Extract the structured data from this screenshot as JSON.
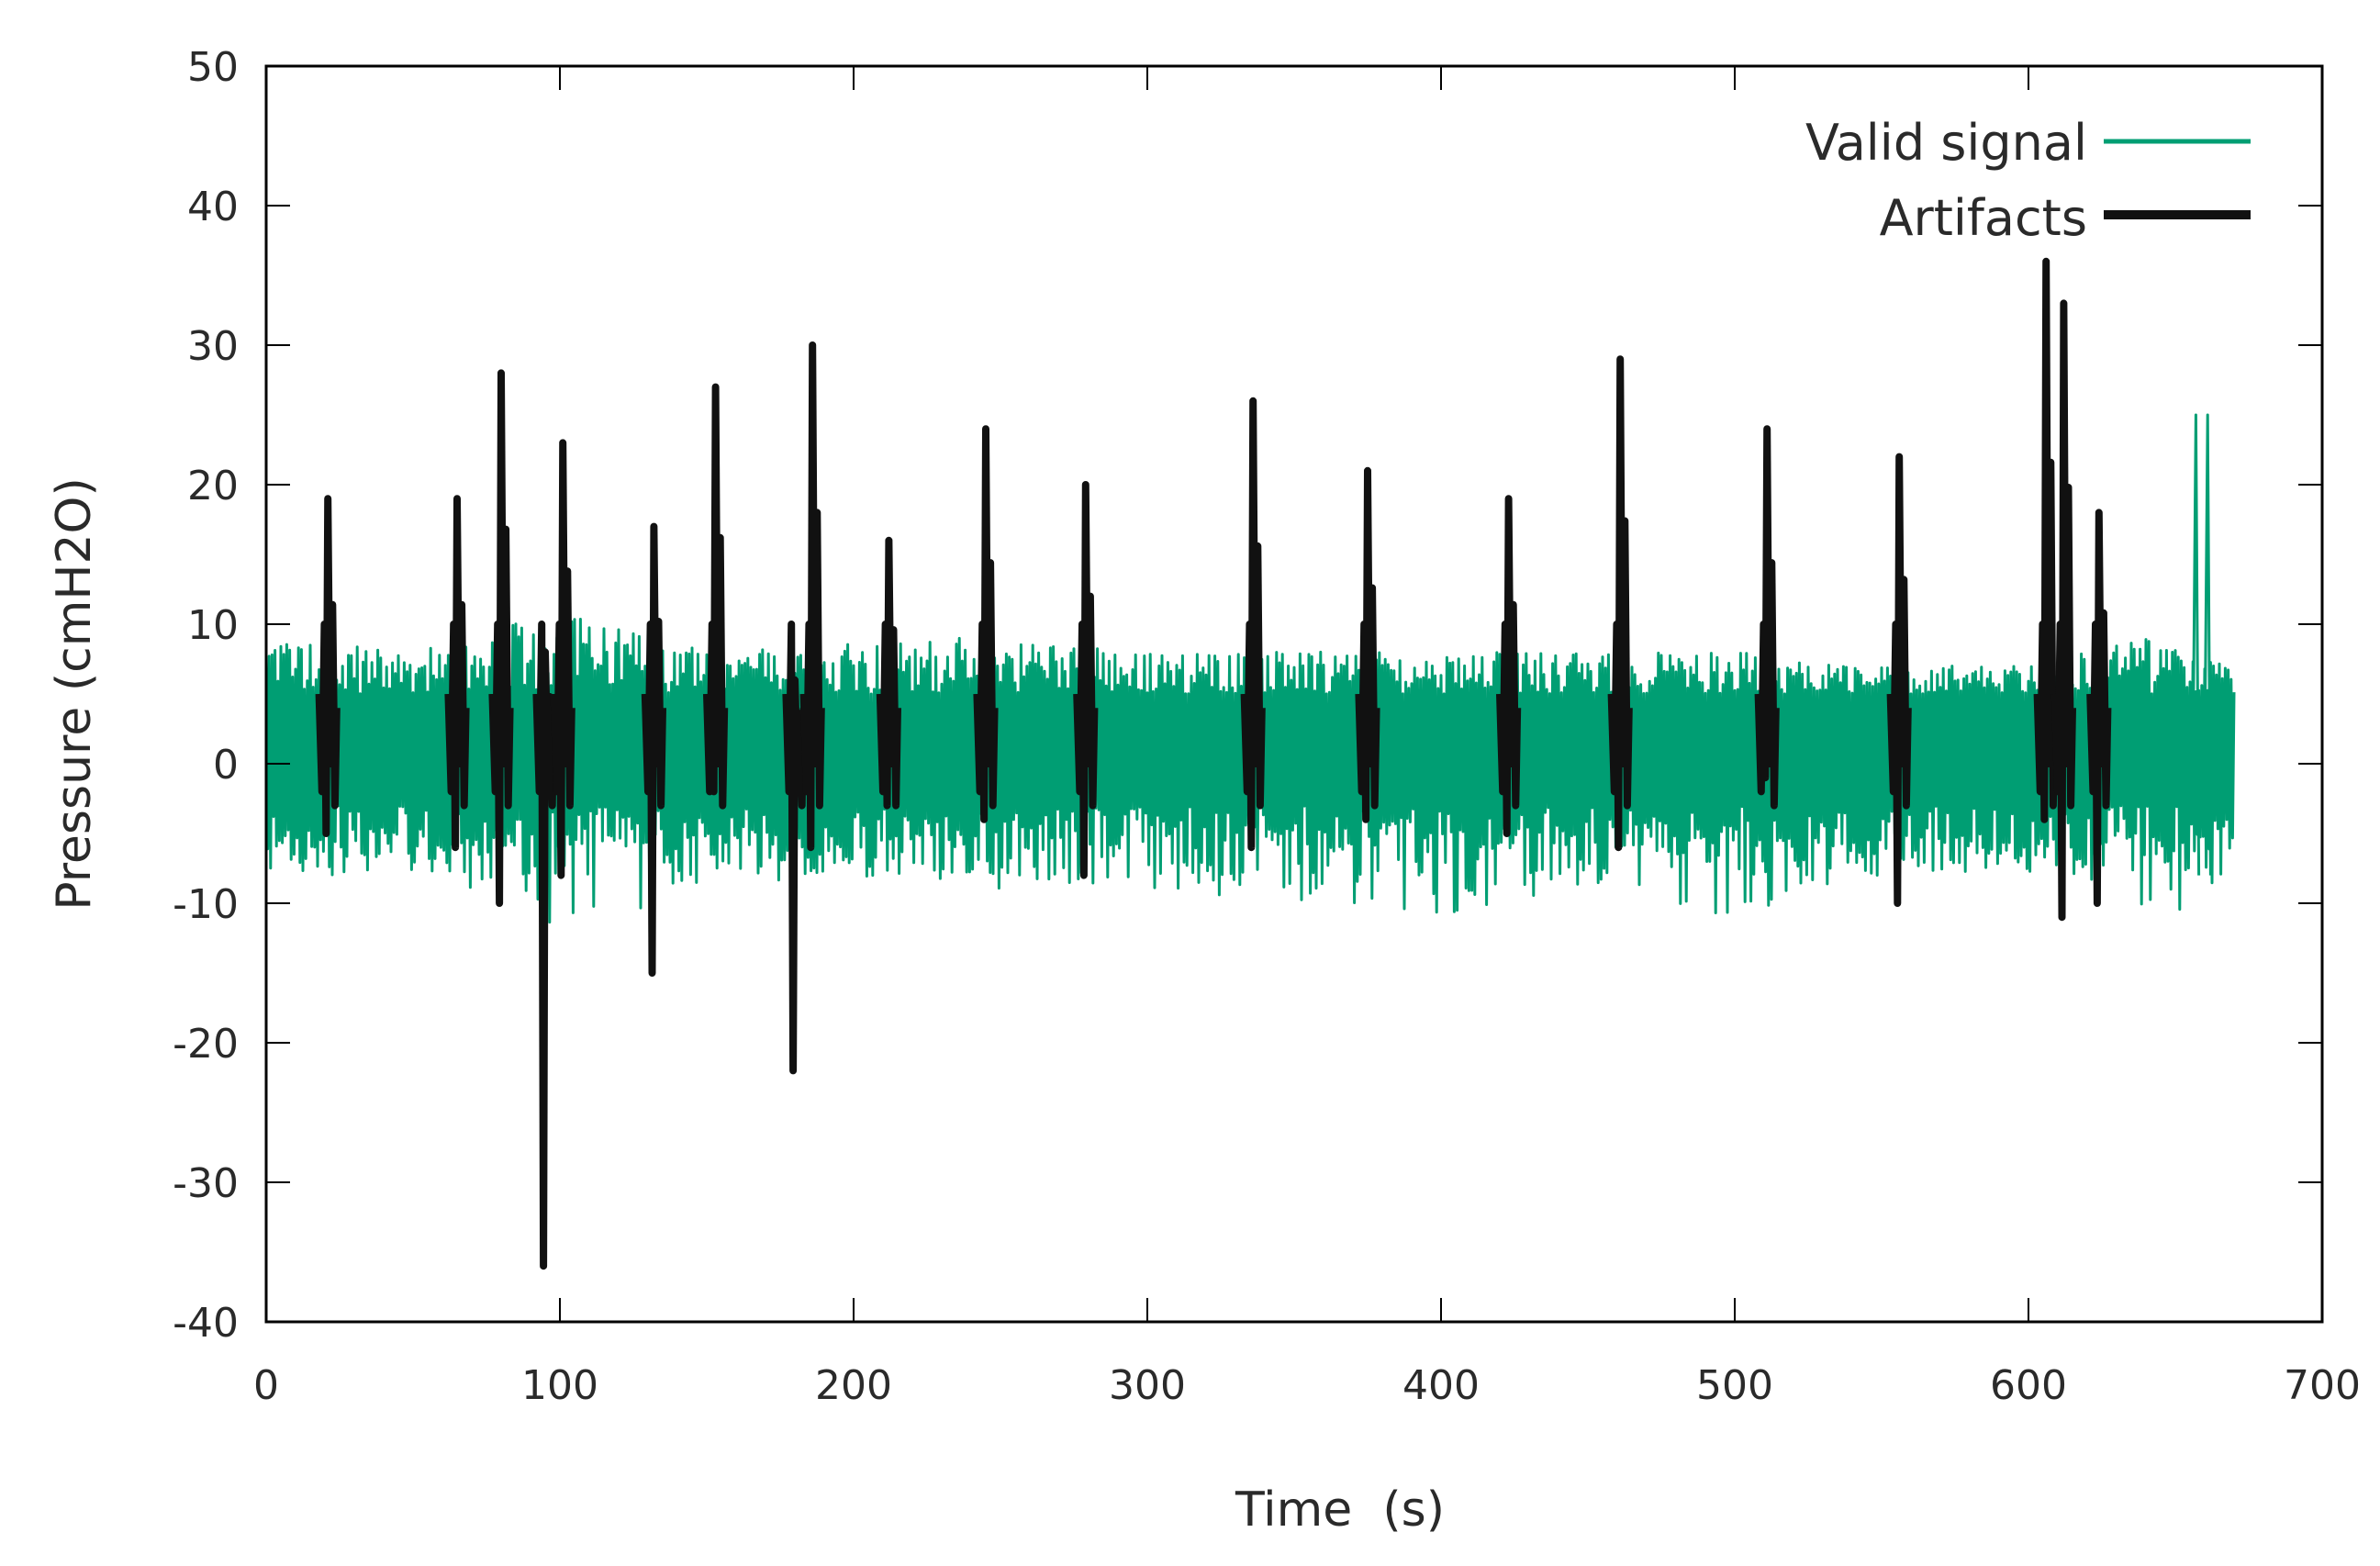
{
  "chart_data": {
    "type": "line",
    "xlabel": "Time  (s)",
    "ylabel": "Pressure (cmH2O)",
    "xlim": [
      0,
      700
    ],
    "ylim": [
      -40,
      50
    ],
    "xticks": [
      0,
      100,
      200,
      300,
      400,
      500,
      600,
      700
    ],
    "yticks": [
      -40,
      -30,
      -20,
      -10,
      0,
      10,
      20,
      30,
      40,
      50
    ],
    "x_tick_labels": [
      "0",
      "100",
      "200",
      "300",
      "400",
      "500",
      "600",
      "700"
    ],
    "y_tick_labels": [
      "-40",
      "-30",
      "-20",
      "-10",
      "0",
      "10",
      "20",
      "30",
      "40",
      "50"
    ],
    "grid": false,
    "legend_position": "top-right",
    "colors": {
      "valid": "#009e73",
      "artifacts": "#111111",
      "axis": "#000000"
    },
    "series": [
      {
        "name": "Valid signal",
        "color": "#009e73",
        "x_range": [
          0,
          670
        ],
        "sample_interval": 0.5,
        "typical_upper": 7,
        "typical_lower": -7,
        "envelope": [
          {
            "x": 0,
            "upper": 8,
            "lower": -7
          },
          {
            "x": 50,
            "upper": 7,
            "lower": -8
          },
          {
            "x": 100,
            "upper": 10,
            "lower": -12
          },
          {
            "x": 150,
            "upper": 7,
            "lower": -9
          },
          {
            "x": 200,
            "upper": 8,
            "lower": -8
          },
          {
            "x": 250,
            "upper": 8,
            "lower": -9
          },
          {
            "x": 300,
            "upper": 7,
            "lower": -9
          },
          {
            "x": 350,
            "upper": 7,
            "lower": -10
          },
          {
            "x": 400,
            "upper": 7,
            "lower": -11
          },
          {
            "x": 450,
            "upper": 7,
            "lower": -9
          },
          {
            "x": 500,
            "upper": 7,
            "lower": -11
          },
          {
            "x": 550,
            "upper": 6,
            "lower": -8
          },
          {
            "x": 600,
            "upper": 6,
            "lower": -7
          },
          {
            "x": 640,
            "upper": 8,
            "lower": -11
          },
          {
            "x": 670,
            "upper": 6,
            "lower": -10
          }
        ],
        "peaks": [
          {
            "x": 657,
            "y": 25
          },
          {
            "x": 661,
            "y": 25
          }
        ]
      },
      {
        "name": "Artifacts",
        "color": "#111111",
        "events": [
          {
            "x": 21,
            "max": 19,
            "min": -5
          },
          {
            "x": 65,
            "max": 19,
            "min": -6
          },
          {
            "x": 80,
            "max": 28,
            "min": -10
          },
          {
            "x": 95,
            "max": 8,
            "min": -36
          },
          {
            "x": 101,
            "max": 23,
            "min": -8
          },
          {
            "x": 132,
            "max": 17,
            "min": -15
          },
          {
            "x": 153,
            "max": 27,
            "min": -2
          },
          {
            "x": 180,
            "max": 6,
            "min": -22
          },
          {
            "x": 186,
            "max": 30,
            "min": -6
          },
          {
            "x": 212,
            "max": 16,
            "min": -3
          },
          {
            "x": 245,
            "max": 24,
            "min": -4
          },
          {
            "x": 279,
            "max": 20,
            "min": -8
          },
          {
            "x": 336,
            "max": 26,
            "min": -6
          },
          {
            "x": 375,
            "max": 21,
            "min": -4
          },
          {
            "x": 423,
            "max": 19,
            "min": -5
          },
          {
            "x": 461,
            "max": 29,
            "min": -6
          },
          {
            "x": 511,
            "max": 24,
            "min": -1
          },
          {
            "x": 556,
            "max": 22,
            "min": -10
          },
          {
            "x": 606,
            "max": 36,
            "min": -4
          },
          {
            "x": 612,
            "max": 33,
            "min": -11
          },
          {
            "x": 624,
            "max": 18,
            "min": -10
          }
        ]
      }
    ]
  }
}
